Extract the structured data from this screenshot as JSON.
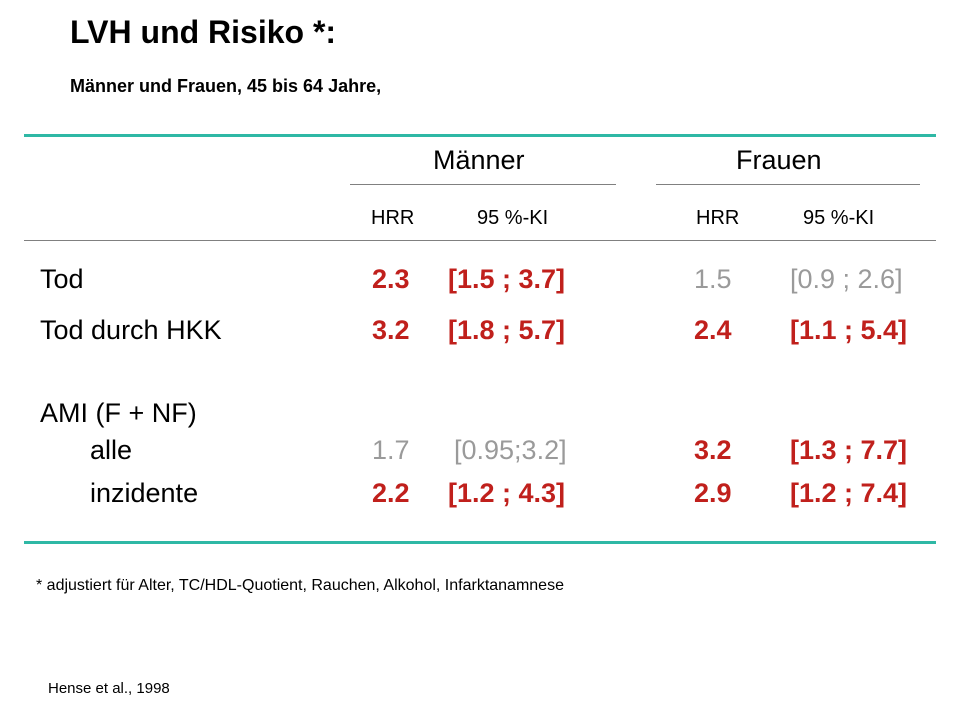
{
  "title": "LVH und Risiko *:",
  "subtitle": "Männer und Frauen, 45 bis 64 Jahre,",
  "groups": [
    {
      "name": "Männer",
      "col_hrr": "HRR",
      "col_ci": "95 %-KI"
    },
    {
      "name": "Frauen",
      "col_hrr": "HRR",
      "col_ci": "95 %-KI"
    }
  ],
  "rows": [
    {
      "label": "Tod",
      "m_hrr": "2.3",
      "m_ci": "[1.5 ; 3.7]",
      "m_sig": true,
      "f_hrr": "1.5",
      "f_ci": "[0.9 ; 2.6]",
      "f_sig": false
    },
    {
      "label": "Tod durch HKK",
      "m_hrr": "3.2",
      "m_ci": "[1.8 ; 5.7]",
      "m_sig": true,
      "f_hrr": "2.4",
      "f_ci": "[1.1 ; 5.4]",
      "f_sig": true
    },
    {
      "label": "AMI (F + NF)"
    },
    {
      "label": "alle",
      "m_hrr": "1.7",
      "m_ci": "[0.95;3.2]",
      "m_sig": false,
      "f_hrr": "3.2",
      "f_ci": "[1.3 ; 7.7]",
      "f_sig": true
    },
    {
      "label": "inzidente",
      "m_hrr": "2.2",
      "m_ci": "[1.2 ; 4.3]",
      "m_sig": true,
      "f_hrr": "2.9",
      "f_ci": "[1.2 ; 7.4]",
      "f_sig": true
    }
  ],
  "footnote": "* adjustiert für Alter, TC/HDL-Quotient, Rauchen, Alkohol, Infarktanamnese",
  "source": "Hense et al.,  1998",
  "colors": {
    "accent_line": "#2fb8a5",
    "significant": "#c0201c",
    "not_significant": "#9a9a9a"
  }
}
